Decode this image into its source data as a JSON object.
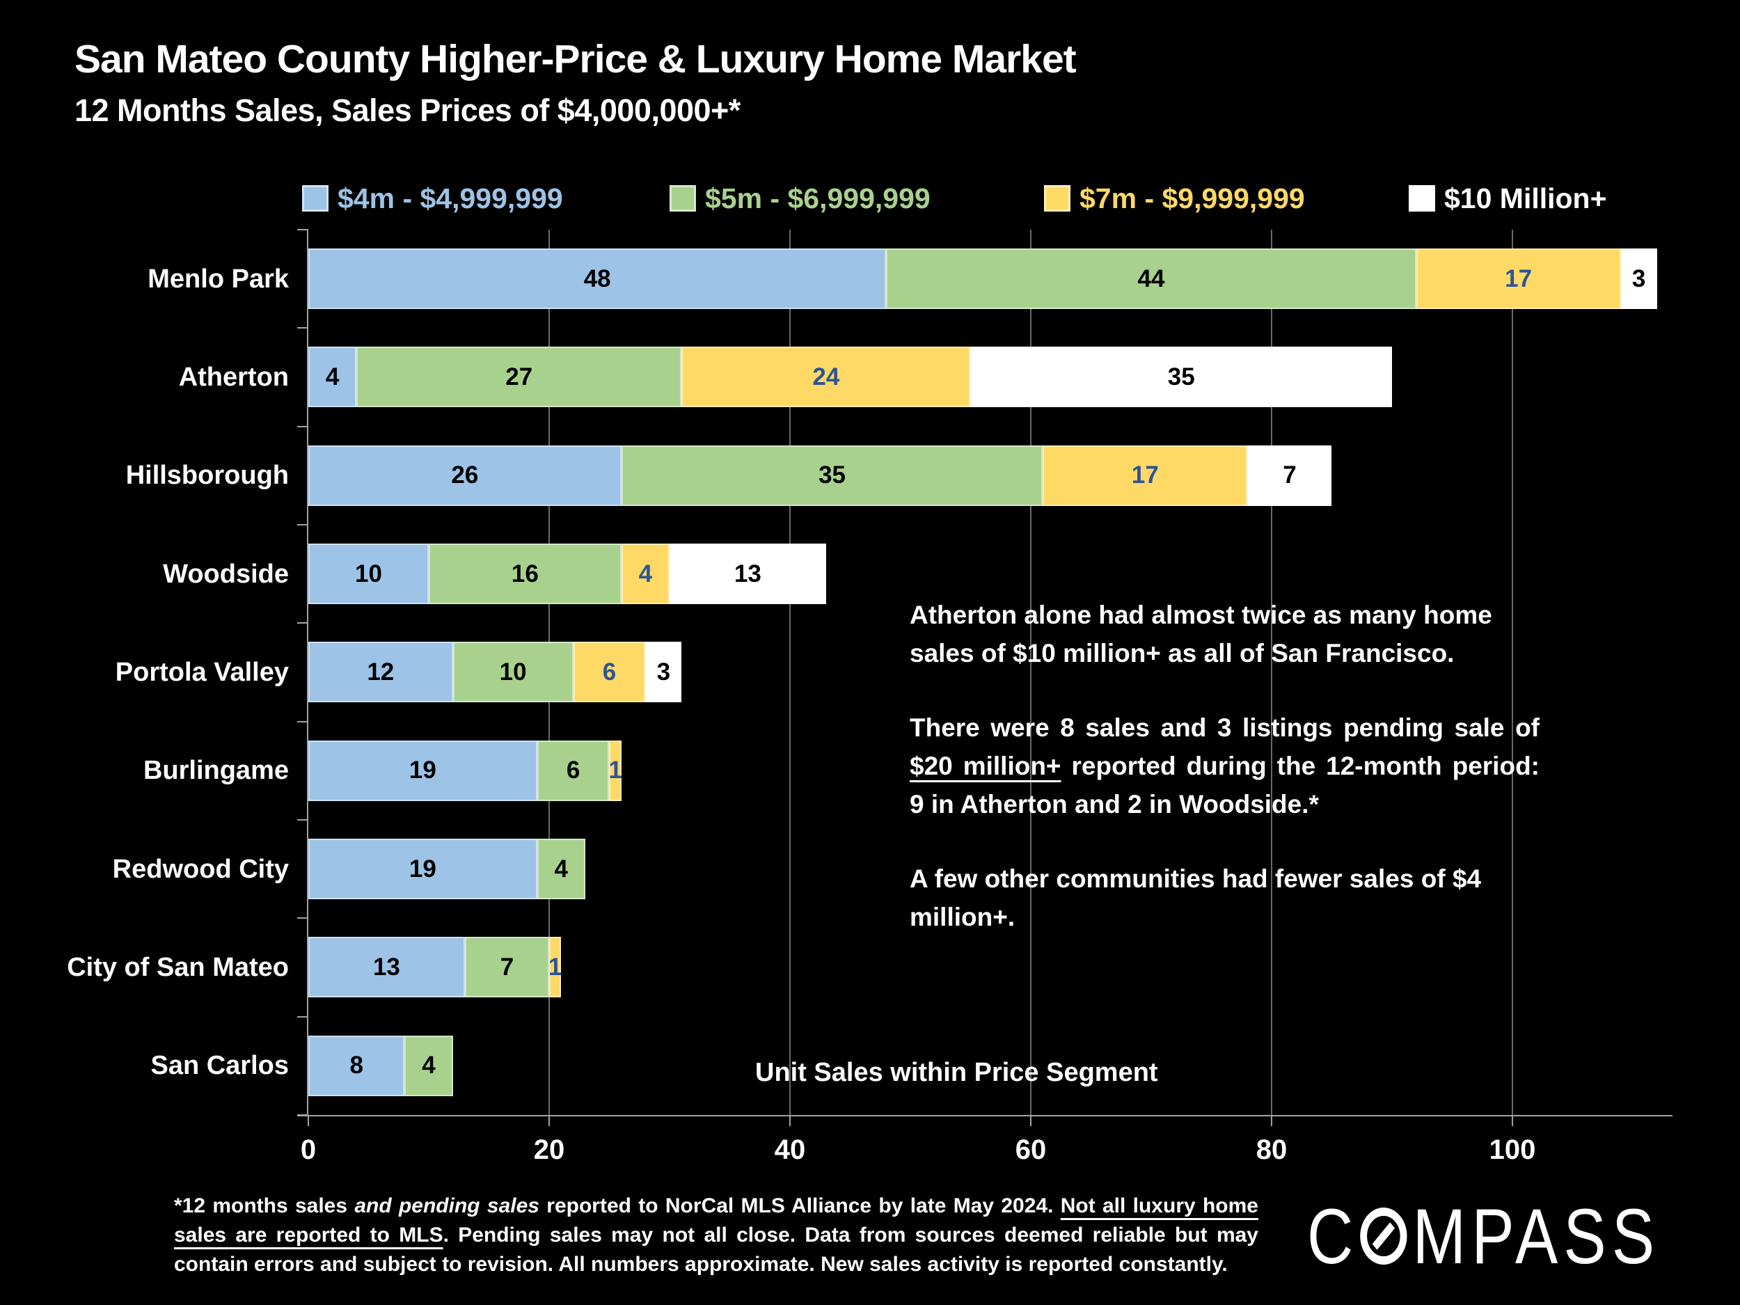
{
  "title": "San Mateo County Higher-Price & Luxury Home Market",
  "subtitle": "12 Months Sales, Sales Prices of $4,000,000+*",
  "colors": {
    "blue": "#9DC3E6",
    "green": "#A9D18E",
    "yellow": "#FFD966",
    "white": "#FFFFFF",
    "label_dark": "#000000",
    "label_on_yellow": "#2E5496",
    "gridline": "#686868",
    "axis": "#A3A3A3",
    "background": "#000000"
  },
  "legend": [
    {
      "label": "$4m - $4,999,999",
      "color": "#9DC3E6"
    },
    {
      "label": "$5m - $6,999,999",
      "color": "#A9D18E"
    },
    {
      "label": "$7m - $9,999,999",
      "color": "#FFD966"
    },
    {
      "label": "$10 Million+",
      "color": "#FFFFFF"
    }
  ],
  "chart_data": {
    "type": "bar",
    "orientation": "horizontal",
    "stacked": true,
    "title": "San Mateo County Higher-Price & Luxury Home Market",
    "xlabel": "Unit Sales within Price Segment",
    "ylabel": "",
    "xlim": [
      0,
      113
    ],
    "grid": true,
    "x_ticks": [
      0,
      20,
      40,
      60,
      80,
      100
    ],
    "categories": [
      "Menlo Park",
      "Atherton",
      "Hillsborough",
      "Woodside",
      "Portola Valley",
      "Burlingame",
      "Redwood City",
      "City of San Mateo",
      "San Carlos"
    ],
    "series": [
      {
        "name": "$4m - $4,999,999",
        "color": "#9DC3E6",
        "values": [
          48,
          4,
          26,
          10,
          12,
          19,
          19,
          13,
          8
        ]
      },
      {
        "name": "$5m - $6,999,999",
        "color": "#A9D18E",
        "values": [
          44,
          27,
          35,
          16,
          10,
          6,
          4,
          7,
          4
        ]
      },
      {
        "name": "$7m - $9,999,999",
        "color": "#FFD966",
        "values": [
          17,
          24,
          17,
          4,
          6,
          1,
          0,
          1,
          0
        ]
      },
      {
        "name": "$10 Million+",
        "color": "#FFFFFF",
        "values": [
          3,
          35,
          7,
          13,
          3,
          0,
          0,
          0,
          0
        ]
      }
    ]
  },
  "axis_label": "Unit Sales within Price Segment",
  "annotations": {
    "para1": "Atherton alone had almost twice as many home sales of $10 million+ as all of San Francisco.",
    "para2_pre": "There were 8 sales and 3 listings pending sale of ",
    "para2_underline": "$20 million+",
    "para2_post": " reported during the 12-month period:  9 in Atherton and 2 in Woodside.*",
    "para3": "A few other communities had fewer sales of $4 million+."
  },
  "footnote": {
    "part1": "*12 months sales ",
    "italic": "and pending sales",
    "part2": " reported to NorCal MLS Alliance by late May 2024. ",
    "underline": "Not all luxury home sales are reported to MLS",
    "part3": ". Pending sales may not all close. Data from sources deemed reliable but may contain errors and subject to revision. All numbers approximate. New sales activity is reported constantly."
  },
  "logo": {
    "pre": "C",
    "post": "MPASS"
  }
}
